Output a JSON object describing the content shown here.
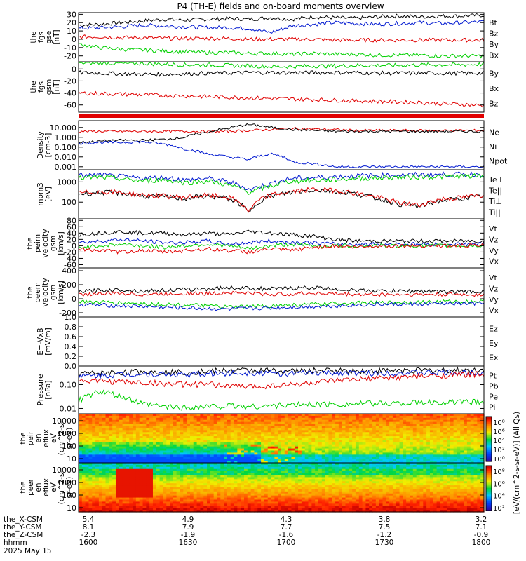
{
  "figure_title": "P4 (TH-E) fields and on-board moments overview",
  "colors": {
    "black": "#000000",
    "red": "#e00000",
    "green": "#00d000",
    "blue": "#0018d0"
  },
  "chart_data": [
    {
      "type": "line",
      "id": "p1",
      "ylabel": [
        "the",
        "fgs",
        "gse",
        "[nT]"
      ],
      "yticks": [
        "30",
        "20",
        "10",
        "0",
        "-10",
        "-20"
      ],
      "ylim": [
        -27,
        32
      ],
      "legend": [
        {
          "name": "Bt",
          "color": "black"
        },
        {
          "name": "Bz",
          "color": "red"
        },
        {
          "name": "By",
          "color": "green"
        },
        {
          "name": "Bx",
          "color": "blue"
        }
      ],
      "series": [
        {
          "name": "Bt",
          "color": "black",
          "values": [
            17,
            18,
            20,
            22,
            24,
            23,
            24,
            25,
            24,
            26,
            24,
            27,
            26,
            25,
            27,
            28,
            27,
            28,
            28,
            29
          ]
        },
        {
          "name": "Bx",
          "color": "blue",
          "values": [
            13,
            14,
            15,
            17,
            16,
            15,
            14,
            14,
            13,
            8,
            16,
            18,
            20,
            19,
            18,
            19,
            20,
            19,
            20,
            21
          ]
        },
        {
          "name": "Bz",
          "color": "red",
          "values": [
            3,
            3,
            2,
            2,
            1,
            1,
            1,
            1,
            0,
            0,
            0,
            0,
            -1,
            -1,
            -1,
            -1,
            -1,
            -1,
            -1,
            -1
          ]
        },
        {
          "name": "By",
          "color": "green",
          "values": [
            -6,
            -10,
            -12,
            -13,
            -14,
            -15,
            -16,
            -16,
            -17,
            -17,
            -18,
            -17,
            -18,
            -18,
            -19,
            -19,
            -19,
            -20,
            -20,
            -20
          ]
        }
      ]
    },
    {
      "type": "line",
      "id": "p2",
      "ylabel": [
        "the",
        "fgs",
        "gsm",
        "[nT]"
      ],
      "yticks": [
        "0",
        "-20",
        "-40",
        "-60"
      ],
      "ylim": [
        -72,
        12
      ],
      "legend": [
        {
          "name": "By",
          "color": "green"
        },
        {
          "name": "Bx",
          "color": "black"
        },
        {
          "name": "Bz",
          "color": "red"
        }
      ],
      "series": [
        {
          "name": "By",
          "color": "green",
          "values": [
            10,
            10,
            9,
            9,
            8,
            7,
            7,
            6,
            5,
            4,
            4,
            5,
            5,
            6,
            6,
            6,
            7,
            7,
            7,
            8
          ]
        },
        {
          "name": "Bx",
          "color": "black",
          "values": [
            -6,
            -7,
            -8,
            -9,
            -9,
            -8,
            -7,
            -7,
            -6,
            -6,
            -6,
            -6,
            -6,
            -6,
            -7,
            -7,
            -7,
            -7,
            -7,
            -7
          ]
        },
        {
          "name": "Bz",
          "color": "red",
          "values": [
            -40,
            -41,
            -42,
            -43,
            -44,
            -45,
            -46,
            -47,
            -48,
            -49,
            -50,
            -51,
            -52,
            -53,
            -54,
            -55,
            -56,
            -58,
            -59,
            -61
          ]
        }
      ]
    },
    {
      "type": "line",
      "id": "p3",
      "log": true,
      "ylabel": [
        "Density",
        "[cm-3]"
      ],
      "yticks": [
        "10.000",
        "1.000",
        "0.100",
        "0.010",
        "0.001"
      ],
      "ylim": [
        0.0005,
        50
      ],
      "legend": [
        {
          "name": "Ne",
          "color": "red"
        },
        {
          "name": "Ni",
          "color": "black"
        },
        {
          "name": "Npot",
          "color": "blue"
        }
      ],
      "series": [
        {
          "name": "Ne",
          "color": "red",
          "values": [
            4,
            4,
            4,
            4,
            4,
            4,
            4,
            4,
            5,
            6,
            8,
            7,
            6,
            5,
            5,
            5,
            5,
            5,
            5,
            5
          ]
        },
        {
          "name": "Ni",
          "color": "black",
          "values": [
            0.3,
            0.4,
            0.5,
            0.5,
            0.6,
            1,
            3,
            8,
            20,
            10,
            6,
            5,
            4,
            4,
            4,
            4,
            4,
            4,
            4,
            4
          ]
        },
        {
          "name": "Npot",
          "color": "blue",
          "values": [
            0.25,
            0.3,
            0.3,
            0.35,
            0.2,
            0.06,
            0.02,
            0.01,
            0.005,
            0.02,
            0.003,
            0.002,
            0.001,
            0.001,
            0.001,
            0.001,
            0.001,
            0.001,
            0.001,
            0.001
          ]
        }
      ]
    },
    {
      "type": "line",
      "id": "p4",
      "log": true,
      "ylabel": [
        "mom3",
        "[eV]"
      ],
      "yticks": [
        "1000",
        "100"
      ],
      "ylim": [
        15,
        4000
      ],
      "legend": [
        {
          "name": "Te⊥",
          "color": "red"
        },
        {
          "name": "Te||",
          "color": "black"
        },
        {
          "name": "Ti⊥",
          "color": "green"
        },
        {
          "name": "Ti||",
          "color": "green"
        }
      ],
      "series": [
        {
          "name": "Ti",
          "color": "blue",
          "values": [
            2000,
            2200,
            1800,
            1500,
            1700,
            1200,
            1500,
            1000,
            400,
            800,
            1500,
            1600,
            1800,
            2000,
            2100,
            2200,
            2300,
            2300,
            2400,
            2400
          ]
        },
        {
          "name": "Ti||",
          "color": "green",
          "values": [
            1500,
            1700,
            1400,
            1100,
            1300,
            900,
            1100,
            700,
            300,
            600,
            1100,
            1200,
            1300,
            1500,
            1600,
            1700,
            1800,
            1800,
            1900,
            1900
          ]
        },
        {
          "name": "Te||",
          "color": "black",
          "values": [
            250,
            300,
            280,
            200,
            180,
            150,
            200,
            150,
            25,
            200,
            300,
            400,
            350,
            250,
            150,
            80,
            60,
            120,
            150,
            200
          ]
        },
        {
          "name": "Te⊥",
          "color": "red",
          "values": [
            280,
            330,
            300,
            220,
            200,
            170,
            220,
            170,
            30,
            220,
            330,
            420,
            380,
            270,
            170,
            90,
            70,
            140,
            170,
            220
          ]
        }
      ]
    },
    {
      "type": "line",
      "id": "p5",
      "ylabel": [
        "the",
        "peim",
        "velocity",
        "gsm",
        "[km/s]"
      ],
      "yticks": [
        "80",
        "60",
        "40",
        "20",
        "0",
        "-20",
        "-40",
        "-60"
      ],
      "ylim": [
        -70,
        85
      ],
      "legend": [
        {
          "name": "Vt",
          "color": "black"
        },
        {
          "name": "Vz",
          "color": "red"
        },
        {
          "name": "Vy",
          "color": "green"
        },
        {
          "name": "Vx",
          "color": "blue"
        }
      ],
      "series": [
        {
          "name": "Vt",
          "color": "black",
          "values": [
            35,
            40,
            45,
            40,
            40,
            35,
            40,
            35,
            45,
            40,
            35,
            30,
            20,
            15,
            15,
            15,
            15,
            15,
            15,
            15
          ]
        },
        {
          "name": "Vx",
          "color": "blue",
          "values": [
            10,
            15,
            20,
            15,
            10,
            10,
            15,
            5,
            10,
            15,
            10,
            10,
            5,
            5,
            5,
            5,
            5,
            5,
            5,
            5
          ]
        },
        {
          "name": "Vy",
          "color": "green",
          "values": [
            -5,
            0,
            5,
            0,
            -5,
            0,
            5,
            0,
            -10,
            0,
            5,
            0,
            0,
            0,
            0,
            0,
            0,
            0,
            0,
            0
          ]
        },
        {
          "name": "Vz",
          "color": "red",
          "values": [
            -10,
            -15,
            -20,
            -15,
            -20,
            -15,
            -10,
            -15,
            -20,
            -10,
            -15,
            -5,
            0,
            -5,
            0,
            0,
            0,
            0,
            0,
            0
          ]
        }
      ]
    },
    {
      "type": "line",
      "id": "p6",
      "ylabel": [
        "the",
        "peem",
        "velocity",
        "gsm",
        "[km/s]"
      ],
      "yticks": [
        "400",
        "200",
        "0",
        "-200"
      ],
      "ylim": [
        -260,
        440
      ],
      "legend": [
        {
          "name": "Vt",
          "color": "black"
        },
        {
          "name": "Vz",
          "color": "red"
        },
        {
          "name": "Vy",
          "color": "green"
        },
        {
          "name": "Vx",
          "color": "blue"
        }
      ],
      "series": [
        {
          "name": "Vt",
          "color": "black",
          "values": [
            100,
            120,
            130,
            110,
            120,
            130,
            140,
            160,
            150,
            140,
            150,
            160,
            140,
            120,
            110,
            110,
            110,
            100,
            100,
            100
          ]
        },
        {
          "name": "Vz",
          "color": "red",
          "values": [
            60,
            70,
            80,
            60,
            70,
            80,
            70,
            90,
            80,
            60,
            70,
            80,
            70,
            60,
            60,
            60,
            60,
            60,
            60,
            60
          ]
        },
        {
          "name": "Vy",
          "color": "green",
          "values": [
            -40,
            -50,
            -60,
            -70,
            -80,
            -90,
            -100,
            -120,
            -110,
            -100,
            -90,
            -80,
            -70,
            -60,
            -60,
            -50,
            -50,
            -40,
            -40,
            -40
          ]
        },
        {
          "name": "Vx",
          "color": "blue",
          "values": [
            -80,
            -90,
            -100,
            -110,
            -120,
            -130,
            -140,
            -150,
            -140,
            -130,
            -120,
            -110,
            -100,
            -90,
            -80,
            -80,
            -80,
            -70,
            -70,
            -70
          ]
        }
      ]
    },
    {
      "type": "line",
      "id": "p7",
      "ylabel": [
        "E=-VxB",
        "[mV/m]"
      ],
      "yticks": [
        "1.0",
        "0.8",
        "0.6",
        "0.4",
        "0.2",
        "0.0"
      ],
      "ylim": [
        0,
        1
      ],
      "legend": [
        {
          "name": "Ez",
          "color": "red"
        },
        {
          "name": "Ey",
          "color": "green"
        },
        {
          "name": "Ex",
          "color": "blue"
        }
      ],
      "series": []
    },
    {
      "type": "line",
      "id": "p8",
      "log": true,
      "ylabel": [
        "Pressure",
        "[nPa]"
      ],
      "yticks": [
        "0.10",
        "0.01"
      ],
      "ylim": [
        0.006,
        0.6
      ],
      "legend": [
        {
          "name": "Pt",
          "color": "black"
        },
        {
          "name": "Pb",
          "color": "red"
        },
        {
          "name": "Pe",
          "color": "green"
        },
        {
          "name": "Pi",
          "color": "blue"
        }
      ],
      "series": [
        {
          "name": "Pt",
          "color": "black",
          "values": [
            0.28,
            0.3,
            0.32,
            0.35,
            0.34,
            0.33,
            0.36,
            0.38,
            0.4,
            0.38,
            0.37,
            0.38,
            0.39,
            0.38,
            0.38,
            0.39,
            0.39,
            0.4,
            0.4,
            0.41
          ]
        },
        {
          "name": "Pi",
          "color": "blue",
          "values": [
            0.22,
            0.24,
            0.26,
            0.28,
            0.27,
            0.26,
            0.28,
            0.3,
            0.32,
            0.3,
            0.29,
            0.3,
            0.31,
            0.3,
            0.3,
            0.31,
            0.31,
            0.32,
            0.32,
            0.33
          ]
        },
        {
          "name": "Pb",
          "color": "red",
          "values": [
            0.15,
            0.14,
            0.13,
            0.12,
            0.11,
            0.1,
            0.1,
            0.09,
            0.08,
            0.09,
            0.1,
            0.12,
            0.14,
            0.16,
            0.18,
            0.2,
            0.22,
            0.24,
            0.26,
            0.28
          ]
        },
        {
          "name": "Pe",
          "color": "green",
          "values": [
            0.02,
            0.05,
            0.03,
            0.015,
            0.012,
            0.011,
            0.012,
            0.013,
            0.012,
            0.013,
            0.014,
            0.015,
            0.015,
            0.016,
            0.016,
            0.017,
            0.017,
            0.018,
            0.018,
            0.019
          ]
        }
      ]
    },
    {
      "type": "heatmap",
      "id": "p9",
      "ylabel": [
        "the",
        "peir",
        "en",
        "eflux",
        "eV",
        "(cm^2-s-",
        "sr-eV)"
      ],
      "yticks": [
        "10000",
        "1000",
        "100",
        "10"
      ]
    },
    {
      "type": "heatmap",
      "id": "p10",
      "ylabel": [
        "the",
        "peer",
        "en",
        "eflux",
        "eV",
        "(cm^2-s-",
        "sr-eV)"
      ],
      "yticks": [
        "10000",
        "1000",
        "100",
        "10"
      ]
    }
  ],
  "colorbar": {
    "label": "[eV/(cm^2-s-sr-eV)] (All Qs)",
    "labels_top": [
      "10⁸",
      "10⁶",
      "10⁴",
      "10²",
      "10⁰"
    ],
    "labels_bottom": [
      "10⁸",
      "10⁶",
      "10⁴",
      "10²"
    ]
  },
  "xaxis": {
    "rows": [
      {
        "label": "the_X-CSM",
        "values": [
          "5.4",
          "4.9",
          "4.3",
          "3.8",
          "3.2"
        ]
      },
      {
        "label": "the_Y-CSM",
        "values": [
          "8.1",
          "7.9",
          "7.7",
          "7.5",
          "7.1"
        ]
      },
      {
        "label": "the_Z-CSM",
        "values": [
          "-2.3",
          "-1.9",
          "-1.6",
          "-1.2",
          "-0.9"
        ]
      },
      {
        "label": "hhmm",
        "values": [
          "1600",
          "1630",
          "1700",
          "1730",
          "1800"
        ]
      }
    ],
    "date": "2025 May 15"
  }
}
